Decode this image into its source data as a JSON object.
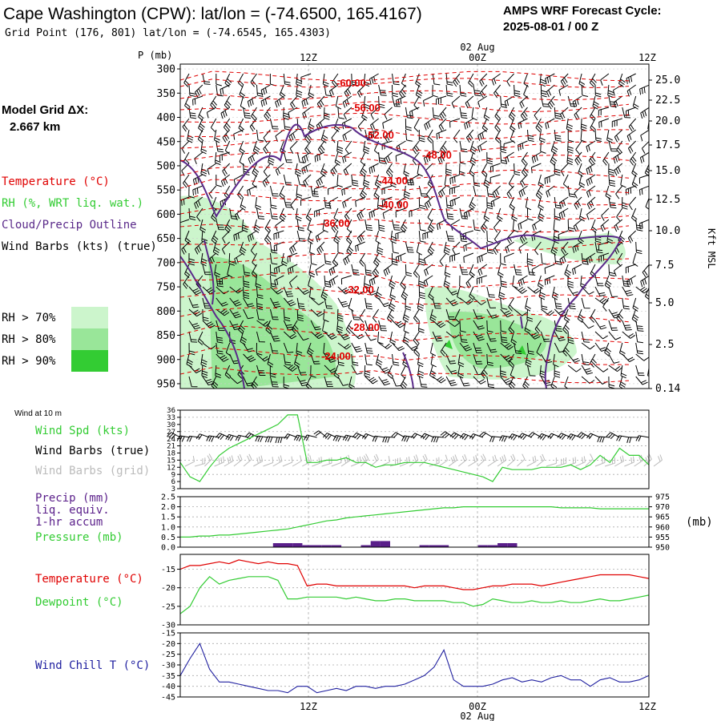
{
  "header": {
    "station_title": "Cape Washington (CPW):  lat/lon = (-74.6500, 165.4167)",
    "grid_point": "Grid Point (176, 801) lat/lon = (-74.6545, 165.4303)",
    "cycle_label": "AMPS WRF Forecast Cycle:",
    "cycle_value": "2025-08-01 / 00  Z"
  },
  "legend": {
    "model_grid_label": "Model Grid ΔX:",
    "model_grid_value": "2.667 km",
    "temperature": "Temperature (°C)",
    "rh": "RH (%, WRT liq. wat.)",
    "cloud": "Cloud/Precip Outline",
    "wind": "Wind Barbs (kts) (true)",
    "rh70": "RH > 70%",
    "rh80": "RH > 80%",
    "rh90": "RH > 90%"
  },
  "colors": {
    "temperature": "#e00000",
    "rh": "#33cc33",
    "cloud": "#5a2a8a",
    "wind": "#000000",
    "wind_grid": "#bbbbbb",
    "precip": "#5a1f8a",
    "windchill": "#2020a0",
    "rh70": "#ccf5cc",
    "rh80": "#99e699",
    "rh90": "#33cc33"
  },
  "time_axis": {
    "date_label": "02 Aug",
    "ticks": [
      "12Z",
      "00Z",
      "12Z"
    ]
  },
  "chart_data": [
    {
      "type": "line",
      "name": "time-height cross section",
      "ylabel": "P (mb)",
      "y2label": "Kft MSL",
      "ylim": [
        960,
        290
      ],
      "yticks": [
        "300",
        "350",
        "400",
        "450",
        "500",
        "550",
        "600",
        "650",
        "700",
        "750",
        "800",
        "850",
        "900",
        "950"
      ],
      "y2ticks": [
        "25.0",
        "22.5",
        "20.0",
        "17.5",
        "15.0",
        "12.5",
        "10.0",
        "7.5",
        "5.0",
        "2.5",
        "0.14"
      ],
      "temperature_contour_labels": [
        "-60.00",
        "-56.00",
        "-52.00",
        "-48.00",
        "-44.00",
        "-40.00",
        "-36.00",
        "-32.00",
        "-28.00",
        "-24.00"
      ],
      "grid": true
    },
    {
      "type": "line",
      "name": "wind at 10 m",
      "panel_title": "Wind at 10 m",
      "labels": [
        "Wind Spd (kts)",
        "Wind Barbs (true)",
        "Wind Barbs (grid)"
      ],
      "yticks": [
        "36",
        "33",
        "30",
        "27",
        "24",
        "21",
        "18",
        "15",
        "12",
        "9",
        "6",
        "3"
      ],
      "ylim": [
        3,
        36
      ],
      "x": [
        0,
        1,
        2,
        3,
        4,
        5,
        6,
        7,
        8,
        9,
        10,
        11,
        12,
        13,
        14,
        15,
        16,
        17,
        18,
        19,
        20,
        21,
        22,
        23,
        24,
        25,
        26,
        27,
        28,
        29,
        30,
        31,
        32,
        33,
        34,
        35,
        36,
        37,
        38,
        39,
        40,
        41,
        42,
        43,
        44,
        45,
        46,
        47,
        48
      ],
      "series": [
        {
          "name": "Wind Spd (kts)",
          "values": [
            14,
            8,
            6,
            12,
            17,
            20,
            22,
            24,
            26,
            28,
            30,
            34,
            34,
            14,
            14,
            15,
            15,
            16,
            14,
            14,
            12,
            13,
            13,
            14,
            14,
            14,
            13,
            12,
            11,
            10,
            9,
            8,
            6,
            12,
            11,
            11,
            11,
            12,
            12,
            12,
            13,
            11,
            13,
            17,
            14,
            20,
            17,
            17,
            13
          ]
        }
      ]
    },
    {
      "type": "bar",
      "name": "precip and pressure",
      "labels": [
        "Precip (mm)",
        "liq. equiv.",
        "1-hr accum",
        "Pressure (mb)"
      ],
      "yticks": [
        "2.5",
        "2.0",
        "1.5",
        "1.0",
        "0.5",
        "0.0"
      ],
      "y2ticks": [
        "975",
        "970",
        "965",
        "960",
        "955",
        "950"
      ],
      "y2label": "(mb)",
      "ylim": [
        0,
        2.5
      ],
      "y2lim": [
        950,
        975
      ],
      "x": [
        0,
        1,
        2,
        3,
        4,
        5,
        6,
        7,
        8,
        9,
        10,
        11,
        12,
        13,
        14,
        15,
        16,
        17,
        18,
        19,
        20,
        21,
        22,
        23,
        24,
        25,
        26,
        27,
        28,
        29,
        30,
        31,
        32,
        33,
        34,
        35,
        36,
        37,
        38,
        39,
        40,
        41,
        42,
        43,
        44,
        45,
        46,
        47,
        48
      ],
      "series": [
        {
          "name": "Precip (mm)",
          "values": [
            0,
            0,
            0,
            0,
            0,
            0,
            0,
            0,
            0,
            0,
            0.2,
            0.2,
            0.2,
            0.1,
            0.1,
            0.1,
            0.1,
            0,
            0,
            0.1,
            0.3,
            0.3,
            0,
            0,
            0,
            0.1,
            0.1,
            0.1,
            0,
            0,
            0,
            0.1,
            0.1,
            0.2,
            0.2,
            0,
            0,
            0,
            0,
            0,
            0,
            0,
            0,
            0,
            0,
            0,
            0,
            0,
            0
          ]
        },
        {
          "name": "Pressure (mb)",
          "values": [
            955,
            955,
            955.5,
            955.5,
            956,
            956,
            956.5,
            957,
            957.5,
            958,
            958.5,
            959,
            960,
            961,
            962,
            963,
            963.5,
            964.5,
            965,
            965.5,
            966,
            966.5,
            967,
            967.5,
            968,
            968.5,
            969,
            969.5,
            969.5,
            970,
            970,
            970,
            970,
            970,
            970,
            970,
            970,
            970,
            970,
            969.5,
            969.5,
            969.5,
            969.5,
            969,
            969,
            969,
            969,
            969,
            969
          ]
        }
      ]
    },
    {
      "type": "line",
      "name": "temperature and dewpoint",
      "labels": [
        "Temperature (°C)",
        "Dewpoint (°C)"
      ],
      "yticks": [
        "-15",
        "-20",
        "-25",
        "-30"
      ],
      "ylim": [
        -30,
        -11
      ],
      "x": [
        0,
        1,
        2,
        3,
        4,
        5,
        6,
        7,
        8,
        9,
        10,
        11,
        12,
        13,
        14,
        15,
        16,
        17,
        18,
        19,
        20,
        21,
        22,
        23,
        24,
        25,
        26,
        27,
        28,
        29,
        30,
        31,
        32,
        33,
        34,
        35,
        36,
        37,
        38,
        39,
        40,
        41,
        42,
        43,
        44,
        45,
        46,
        47,
        48
      ],
      "series": [
        {
          "name": "Temperature (°C)",
          "values": [
            -15,
            -14,
            -14,
            -13.5,
            -13,
            -13.5,
            -12.5,
            -13,
            -13.5,
            -13,
            -13.5,
            -13.5,
            -14,
            -19.5,
            -19,
            -19,
            -19.5,
            -19.5,
            -19.5,
            -19.5,
            -19.5,
            -19.5,
            -19.5,
            -19.5,
            -20,
            -19.5,
            -19.5,
            -19.5,
            -20,
            -20.5,
            -20.5,
            -20,
            -19.5,
            -19.5,
            -19,
            -19,
            -19,
            -19.5,
            -19,
            -18.5,
            -18,
            -17.5,
            -17,
            -16.5,
            -16.5,
            -16.5,
            -16.5,
            -17,
            -17.5
          ]
        },
        {
          "name": "Dewpoint (°C)",
          "values": [
            -27,
            -25,
            -20,
            -17,
            -19,
            -18,
            -17.5,
            -17,
            -17,
            -17,
            -18,
            -23,
            -23,
            -22.5,
            -22.5,
            -22.5,
            -22.5,
            -23,
            -22.5,
            -23,
            -23.5,
            -23.5,
            -23,
            -23,
            -23.5,
            -23.5,
            -23.5,
            -23.5,
            -24,
            -24,
            -25,
            -24.5,
            -23,
            -23.5,
            -24,
            -24,
            -23.5,
            -24,
            -24,
            -23.5,
            -24,
            -24,
            -23.5,
            -23,
            -23.5,
            -23.5,
            -23,
            -22.5,
            -22
          ]
        }
      ]
    },
    {
      "type": "line",
      "name": "wind chill",
      "labels": [
        "Wind Chill T (°C)"
      ],
      "yticks": [
        "-15",
        "-20",
        "-25",
        "-30",
        "-35",
        "-40",
        "-45"
      ],
      "ylim": [
        -45,
        -15
      ],
      "x": [
        0,
        1,
        2,
        3,
        4,
        5,
        6,
        7,
        8,
        9,
        10,
        11,
        12,
        13,
        14,
        15,
        16,
        17,
        18,
        19,
        20,
        21,
        22,
        23,
        24,
        25,
        26,
        27,
        28,
        29,
        30,
        31,
        32,
        33,
        34,
        35,
        36,
        37,
        38,
        39,
        40,
        41,
        42,
        43,
        44,
        45,
        46,
        47,
        48
      ],
      "series": [
        {
          "name": "Wind Chill T (°C)",
          "values": [
            -35,
            -27,
            -20,
            -32,
            -38,
            -38,
            -39,
            -40,
            -41,
            -42,
            -42,
            -43,
            -40,
            -40,
            -43,
            -42,
            -41,
            -42,
            -40,
            -40,
            -41,
            -40,
            -40,
            -39,
            -37,
            -35,
            -31,
            -23,
            -37,
            -40,
            -40,
            -40,
            -39,
            -37,
            -36,
            -38,
            -37,
            -38,
            -36,
            -35,
            -37,
            -37,
            -40,
            -37,
            -36,
            -38,
            -38,
            -37,
            -35
          ]
        }
      ]
    }
  ]
}
